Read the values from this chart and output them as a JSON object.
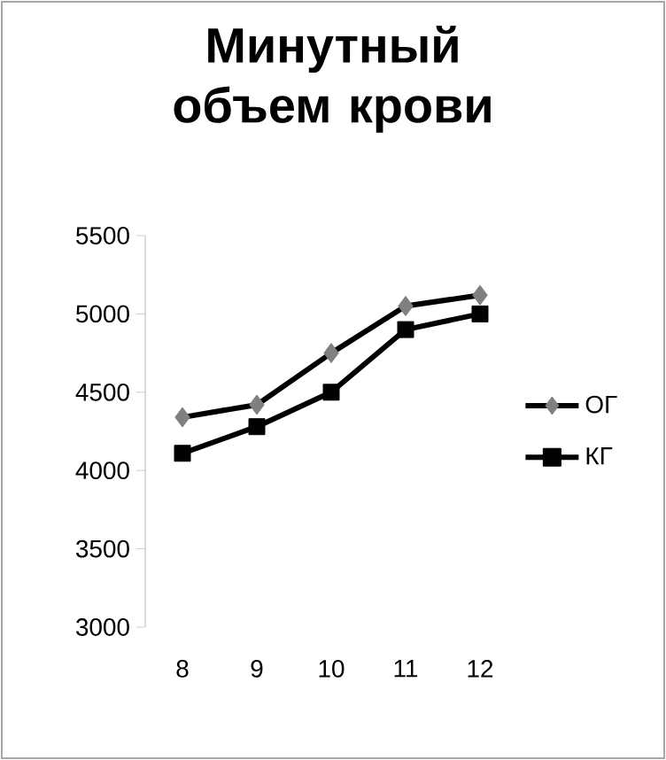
{
  "chart_data": {
    "type": "line",
    "title": "Минутный объем крови",
    "categories": [
      "8",
      "9",
      "10",
      "11",
      "12"
    ],
    "series": [
      {
        "name": "ОГ",
        "color": "#808080",
        "marker": "diamond",
        "values": [
          4340,
          4420,
          4750,
          5050,
          5120
        ]
      },
      {
        "name": "КГ",
        "color": "#000000",
        "marker": "square",
        "values": [
          4110,
          4280,
          4500,
          4900,
          5000
        ]
      }
    ],
    "ylim": [
      3000,
      5500
    ],
    "yticks": [
      3000,
      3500,
      4000,
      4500,
      5000,
      5500
    ],
    "grid": false,
    "legend": "right",
    "line_style": "solid"
  }
}
